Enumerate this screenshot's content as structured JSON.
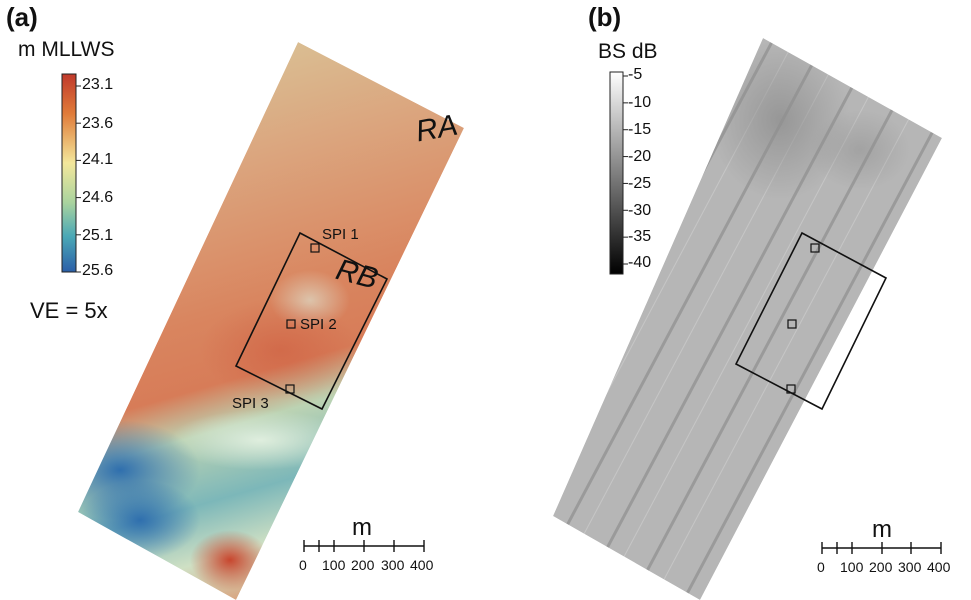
{
  "panel_a": {
    "label": "(a)",
    "colorbar_title": "m MLLWS",
    "colorbar_ticks": [
      "23.1",
      "23.6",
      "24.1",
      "24.6",
      "25.1",
      "25.6"
    ],
    "colorbar_colors": [
      "#c0392b",
      "#e07b39",
      "#f3e79b",
      "#a9d39e",
      "#4aa8b6",
      "#2b5fa8"
    ],
    "ve_label": "VE = 5x",
    "region_labels": [
      "RA",
      "RB"
    ],
    "spi_labels": [
      "SPI 1",
      "SPI 2",
      "SPI 3"
    ],
    "scale_unit": "m",
    "scale_ticks": [
      "0",
      "100",
      "200",
      "300",
      "400"
    ]
  },
  "panel_b": {
    "label": "(b)",
    "colorbar_title": "BS dB",
    "colorbar_ticks": [
      "-5",
      "-10",
      "-15",
      "-20",
      "-25",
      "-30",
      "-35",
      "-40"
    ],
    "scale_unit": "m",
    "scale_ticks": [
      "0",
      "100",
      "200",
      "300",
      "400"
    ]
  }
}
